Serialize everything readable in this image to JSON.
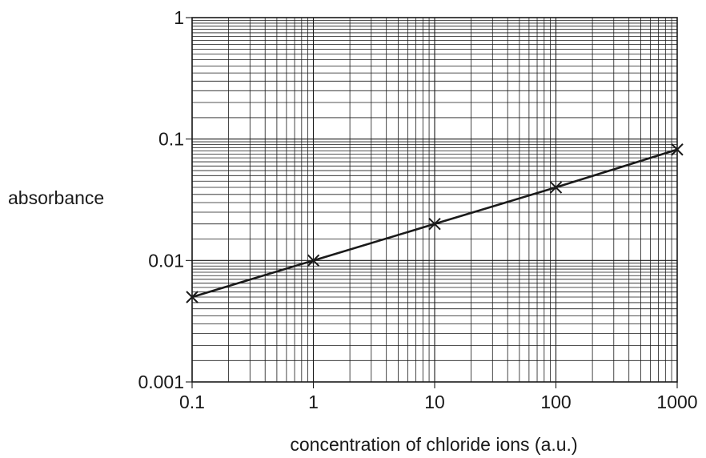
{
  "chart_data": {
    "type": "line",
    "xlabel": "concentration of chloride ions (a.u.)",
    "ylabel": "absorbance",
    "x_scale": "log",
    "y_scale": "log",
    "xlim": [
      0.1,
      1000
    ],
    "ylim": [
      0.001,
      1
    ],
    "grid": true,
    "x_ticks": [
      {
        "value": 0.1,
        "label": "0.1"
      },
      {
        "value": 1,
        "label": "1"
      },
      {
        "value": 10,
        "label": "10"
      },
      {
        "value": 100,
        "label": "100"
      },
      {
        "value": 1000,
        "label": "1000"
      }
    ],
    "y_ticks": [
      {
        "value": 0.001,
        "label": "0.001"
      },
      {
        "value": 0.01,
        "label": "0.01"
      },
      {
        "value": 0.1,
        "label": "0.1"
      },
      {
        "value": 1,
        "label": "1"
      }
    ],
    "series": [
      {
        "marker": "x",
        "color": "#1a1a1a",
        "x": [
          0.1,
          1,
          10,
          100,
          1000
        ],
        "y": [
          0.005,
          0.01,
          0.02,
          0.04,
          0.082
        ]
      }
    ]
  }
}
